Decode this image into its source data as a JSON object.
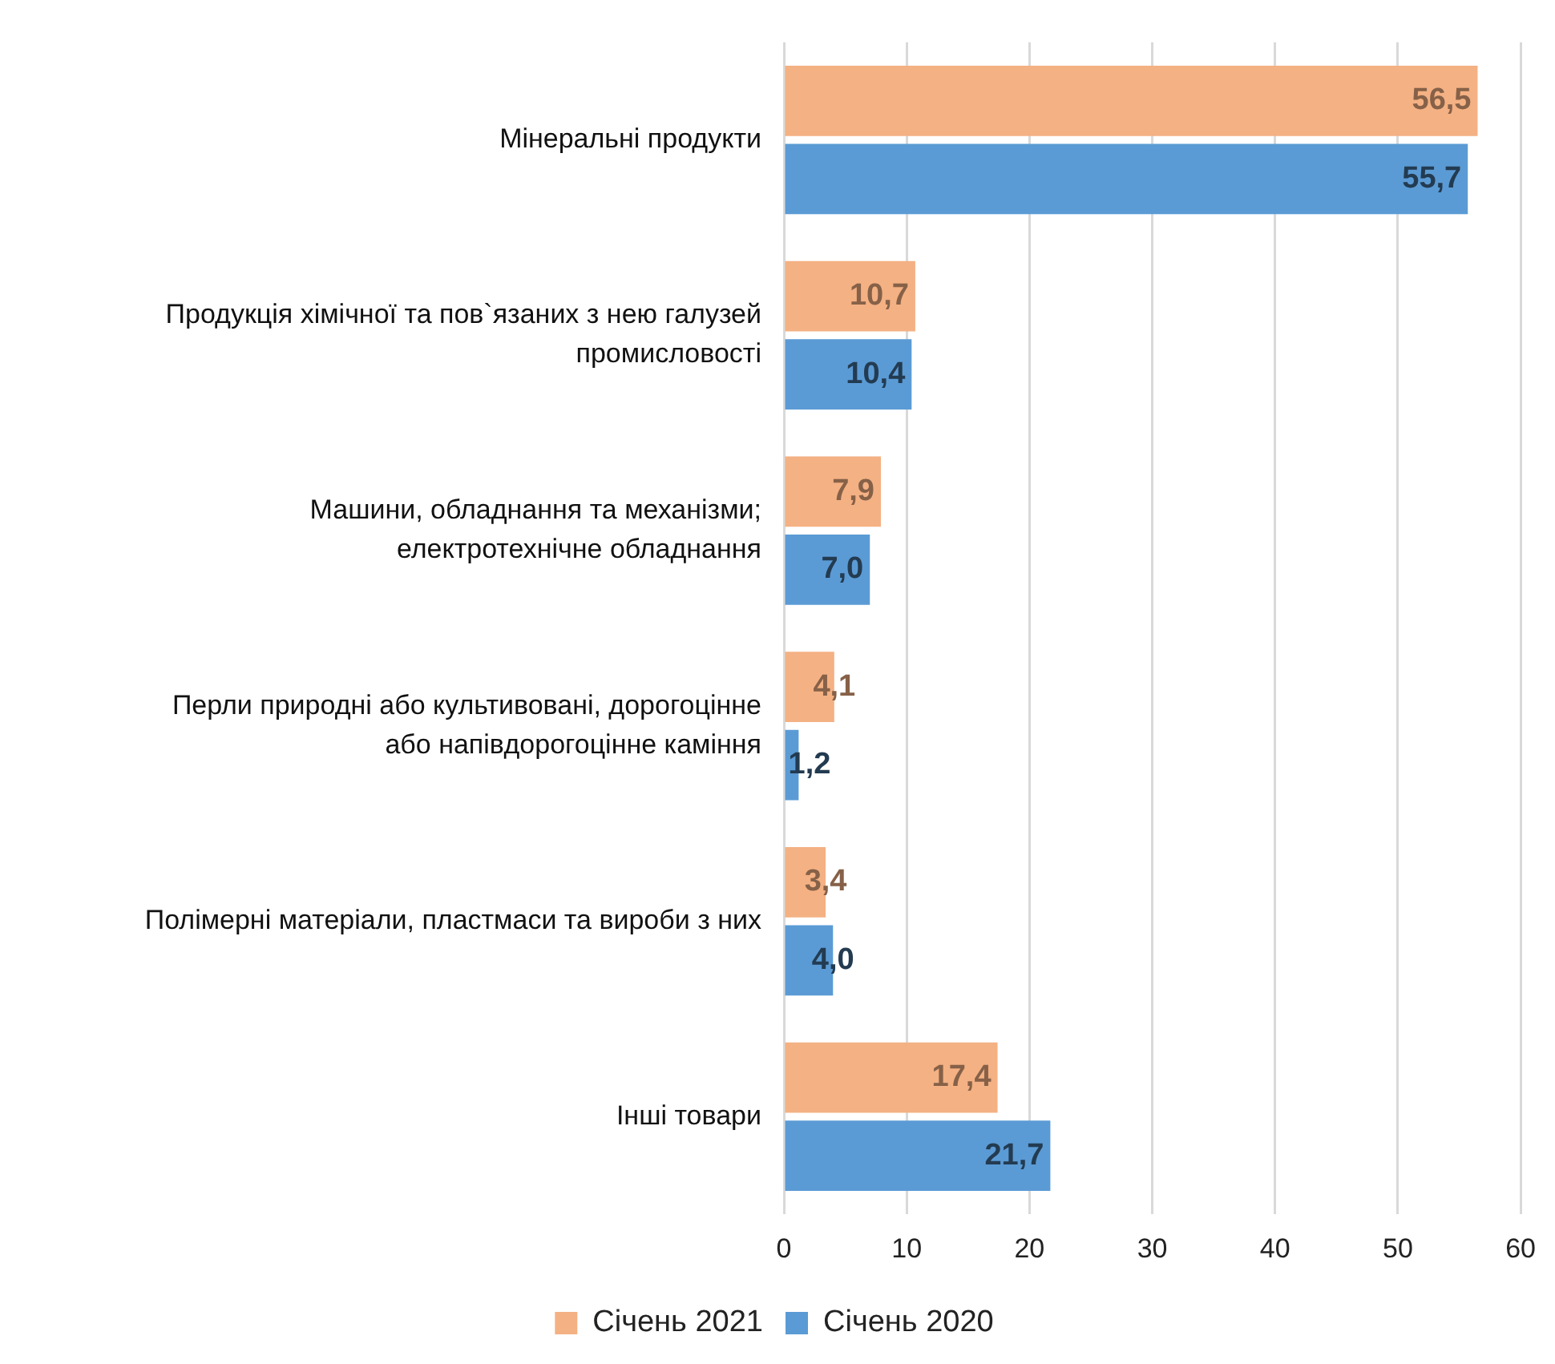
{
  "chart_data": {
    "type": "bar",
    "orientation": "horizontal",
    "categories": [
      "Мінеральні продукти",
      "Продукція хімічної та пов`язаних з нею галузей промисловості",
      "Машини, обладнання та механізми; електротехнічне обладнання",
      "Перли природні або культивовані, дорогоцінне або напівдорогоцінне каміння",
      "Полімерні матеріали, пластмаси та вироби з них",
      "Інші товари"
    ],
    "series": [
      {
        "name": "Січень 2021",
        "color": "#f4b183",
        "values": [
          56.5,
          10.7,
          7.9,
          4.1,
          3.4,
          17.4
        ],
        "value_labels": [
          "56,5",
          "10,7",
          "7,9",
          "4,1",
          "3,4",
          "17,4"
        ]
      },
      {
        "name": "Січень 2020",
        "color": "#5b9bd5",
        "values": [
          55.7,
          10.4,
          7.0,
          1.2,
          4.0,
          21.7
        ],
        "value_labels": [
          "55,7",
          "10,4",
          "7,0",
          "1,2",
          "4,0",
          "21,7"
        ]
      }
    ],
    "xlim": [
      0,
      60
    ],
    "xticks": [
      0,
      10,
      20,
      30,
      40,
      50,
      60
    ],
    "grid": "x",
    "legend": "bottom"
  }
}
